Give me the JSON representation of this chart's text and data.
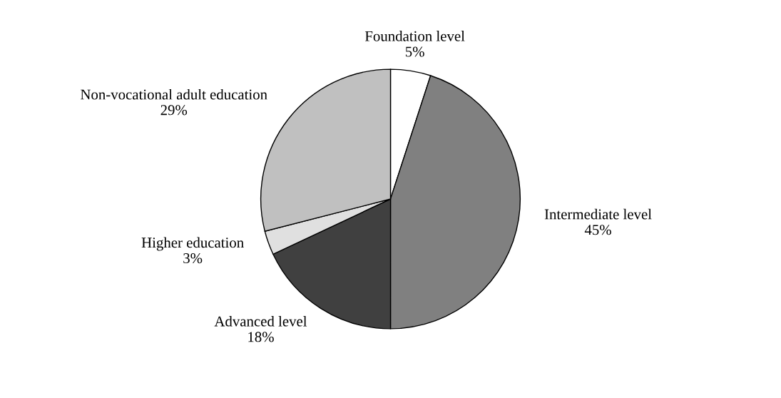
{
  "chart_data": {
    "type": "pie",
    "categories": [
      "Foundation level",
      "Intermediate level",
      "Advanced level",
      "Higher education",
      "Non-vocational adult education"
    ],
    "values": [
      5,
      45,
      18,
      3,
      29
    ],
    "value_labels": [
      "5%",
      "45%",
      "18%",
      "3%",
      "29%"
    ],
    "colors": [
      "#ffffff",
      "#808080",
      "#404040",
      "#e0e0e0",
      "#c0c0c0"
    ]
  }
}
